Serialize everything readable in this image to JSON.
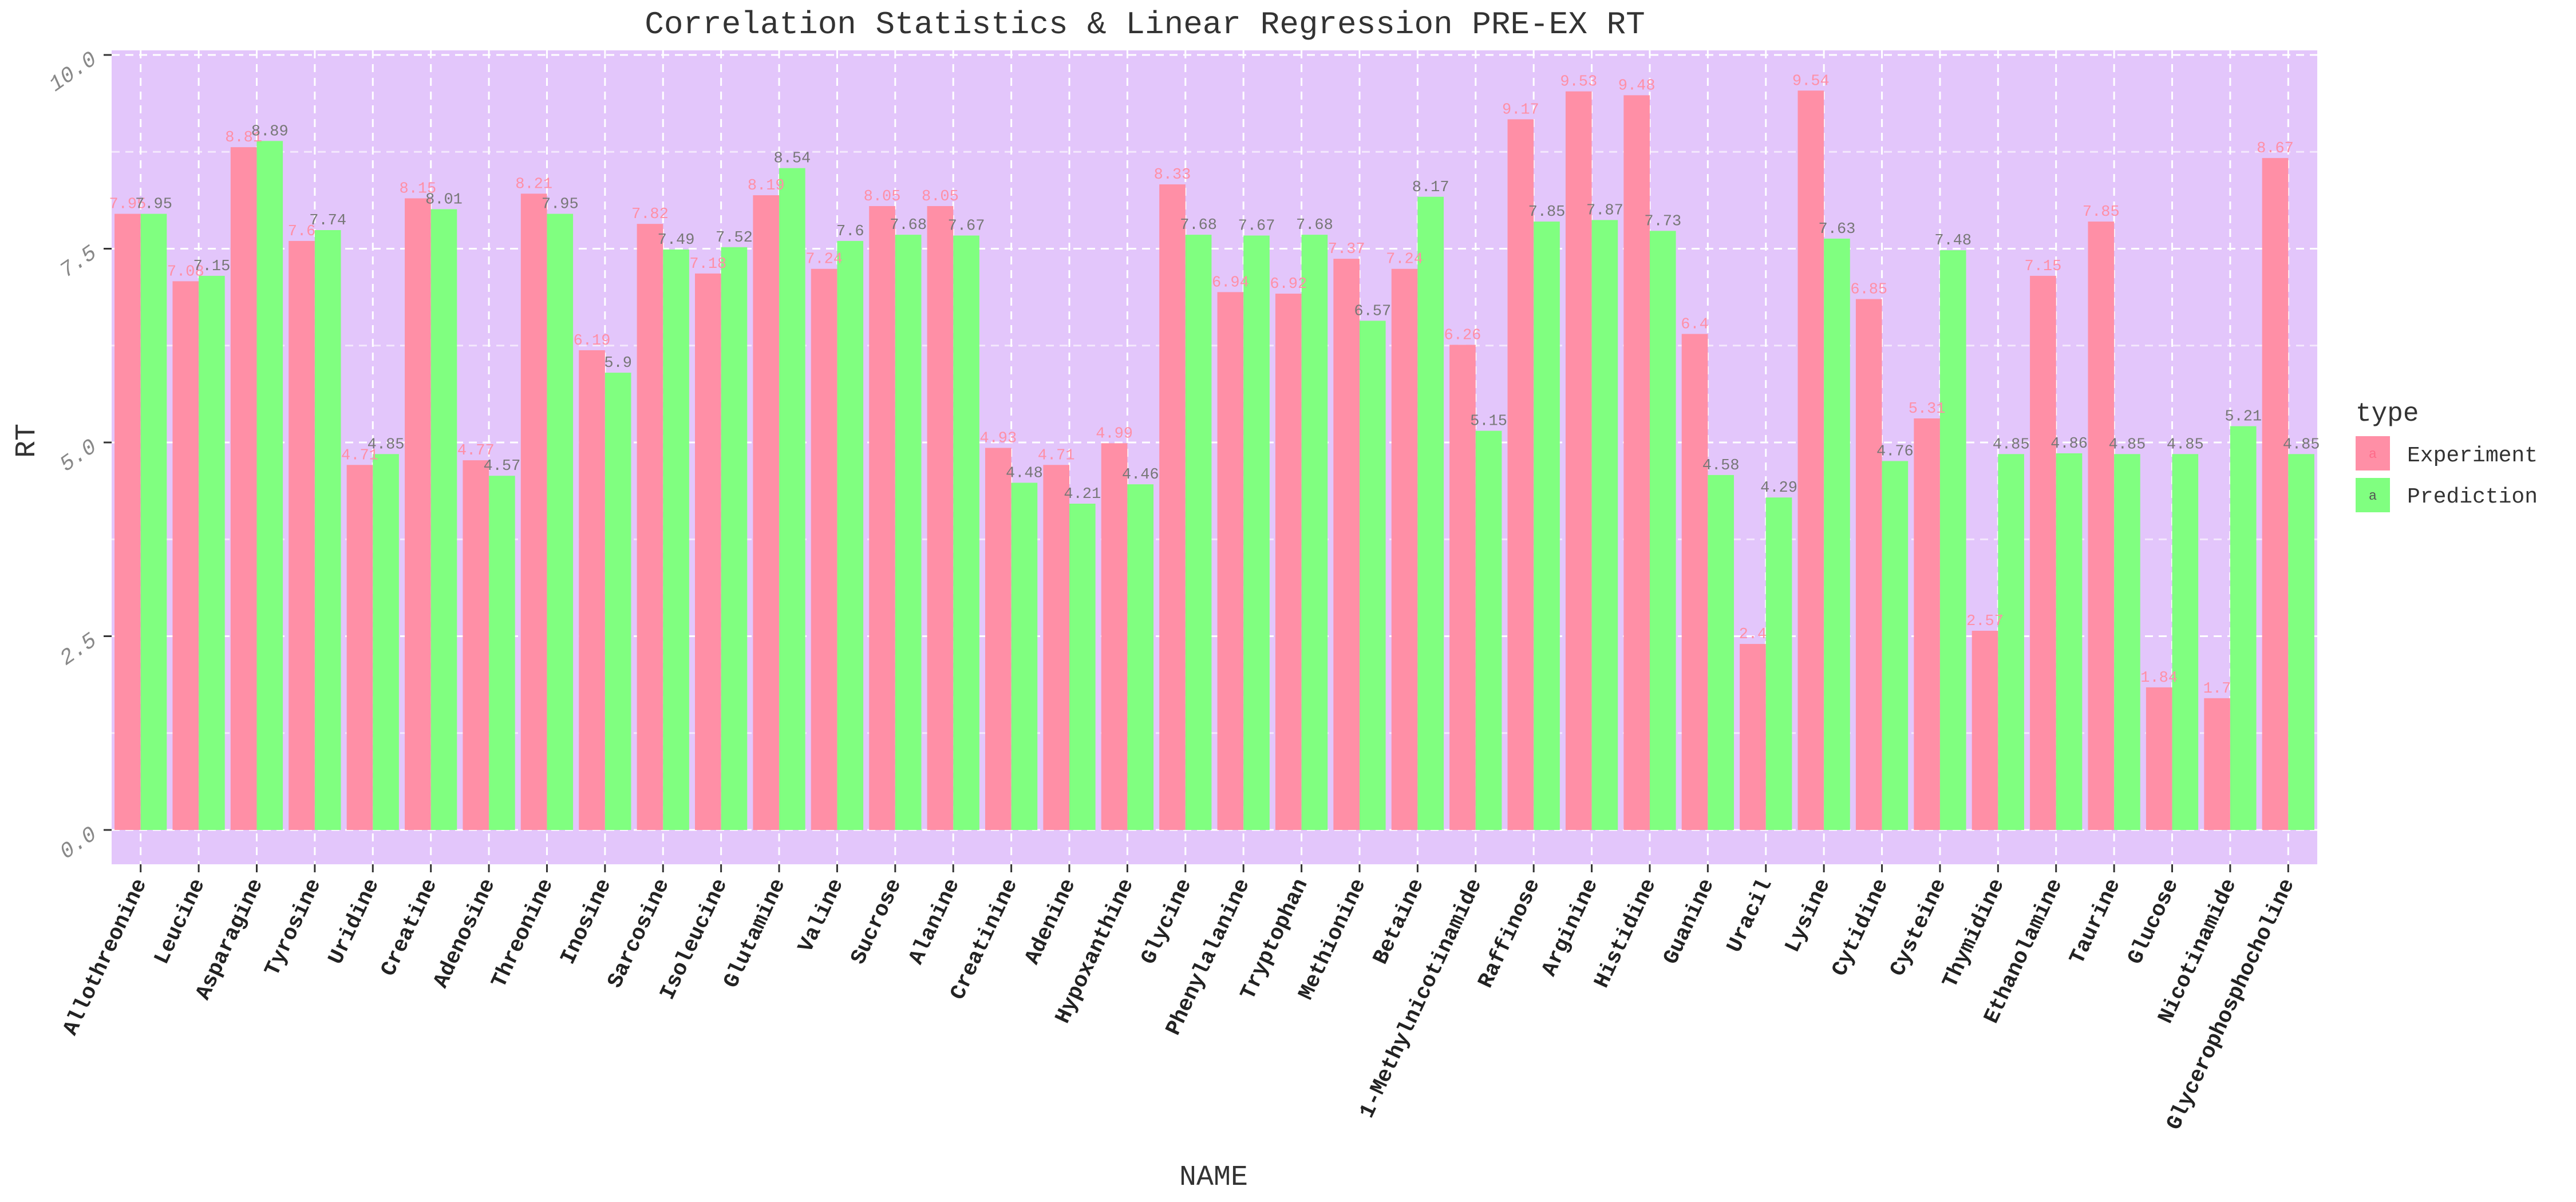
{
  "chart_data": {
    "type": "bar",
    "title": "Correlation Statistics & Linear Regression PRE-EX RT",
    "xlabel": "NAME",
    "ylabel": "RT",
    "ylim": [
      0,
      10
    ],
    "yticks": [
      "0.0",
      "2.5",
      "5.0",
      "7.5",
      "10.0"
    ],
    "grid": true,
    "legend": {
      "title": "type",
      "position": "right"
    },
    "categories": [
      "Allothreonine",
      "Leucine",
      "Asparagine",
      "Tyrosine",
      "Uridine",
      "Creatine",
      "Adenosine",
      "Threonine",
      "Inosine",
      "Sarcosine",
      "Isoleucine",
      "Glutamine",
      "Valine",
      "Sucrose",
      "Alanine",
      "Creatinine",
      "Adenine",
      "Hypoxanthine",
      "Glycine",
      "Phenylalanine",
      "Tryptophan",
      "Methionine",
      "Betaine",
      "1-Methylnicotinamide",
      "Raffinose",
      "Arginine",
      "Histidine",
      "Guanine",
      "Uracil",
      "Lysine",
      "Cytidine",
      "Cysteine",
      "Thymidine",
      "Ethanolamine",
      "Taurine",
      "Glucose",
      "Nicotinamide",
      "Glycerophosphocholine"
    ],
    "series": [
      {
        "name": "Experiment",
        "color": "#ff8fa6",
        "values": [
          7.95,
          7.08,
          8.81,
          7.6,
          4.71,
          8.15,
          4.77,
          8.21,
          6.19,
          7.82,
          7.18,
          8.19,
          7.24,
          8.05,
          8.05,
          4.93,
          4.71,
          4.99,
          8.33,
          6.94,
          6.92,
          7.37,
          7.24,
          6.26,
          9.17,
          9.53,
          9.48,
          6.4,
          2.4,
          9.54,
          6.85,
          5.31,
          2.57,
          7.15,
          7.85,
          1.84,
          1.7,
          8.67
        ]
      },
      {
        "name": "Prediction",
        "color": "#80ff80",
        "values": [
          7.95,
          7.15,
          8.89,
          7.74,
          4.85,
          8.01,
          4.57,
          7.95,
          5.9,
          7.49,
          7.52,
          8.54,
          7.6,
          7.68,
          7.67,
          4.48,
          4.21,
          4.46,
          7.68,
          7.67,
          7.68,
          6.57,
          8.17,
          5.15,
          7.85,
          7.87,
          7.73,
          4.58,
          4.29,
          7.63,
          4.76,
          7.48,
          4.85,
          4.86,
          4.85,
          4.85,
          5.21,
          4.85
        ]
      }
    ],
    "panel_color": "#e3c6fb"
  }
}
